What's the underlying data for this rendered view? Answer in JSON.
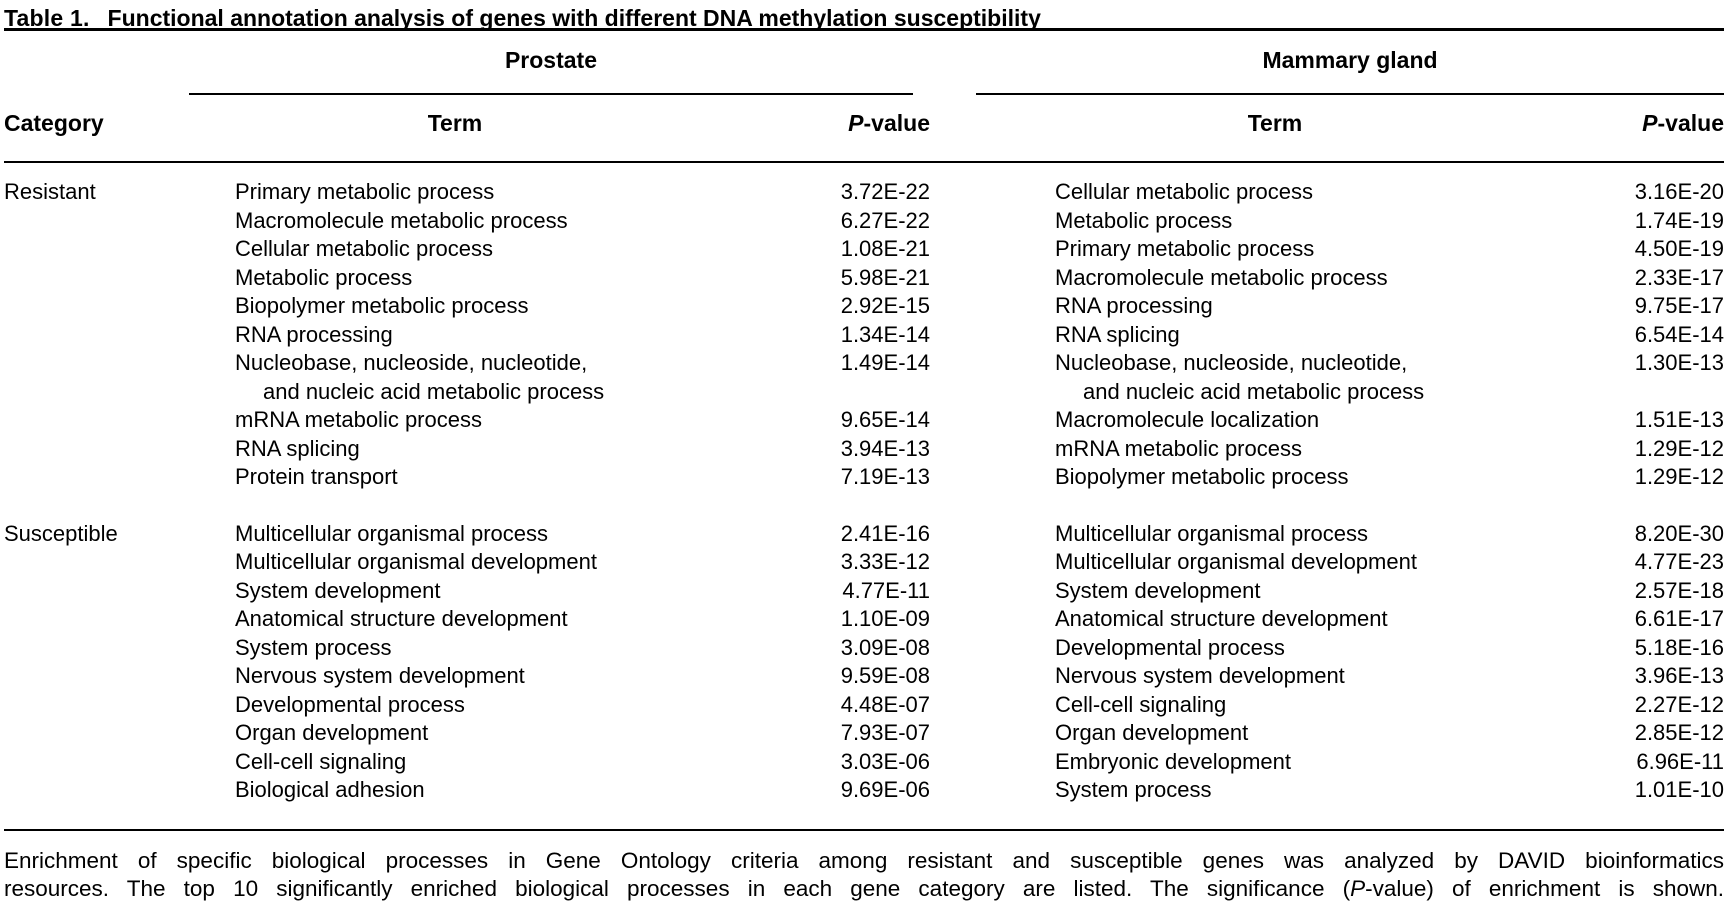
{
  "title": {
    "label": "Table 1.",
    "text": "Functional annotation analysis of genes with different DNA methylation susceptibility"
  },
  "header": {
    "category": "Category",
    "groups": [
      {
        "name": "Prostate",
        "term": "Term",
        "p_italic": "P",
        "p_suffix": "-value"
      },
      {
        "name": "Mammary gland",
        "term": "Term",
        "p_italic": "P",
        "p_suffix": "-value"
      }
    ]
  },
  "sections": [
    {
      "category": "Resistant",
      "rows": [
        {
          "pt": "Primary metabolic process",
          "pp": "3.72E-22",
          "mt": "Cellular metabolic process",
          "mp": "3.16E-20"
        },
        {
          "pt": "Macromolecule metabolic process",
          "pp": "6.27E-22",
          "mt": "Metabolic process",
          "mp": "1.74E-19"
        },
        {
          "pt": "Cellular metabolic process",
          "pp": "1.08E-21",
          "mt": "Primary metabolic process",
          "mp": "4.50E-19"
        },
        {
          "pt": "Metabolic process",
          "pp": "5.98E-21",
          "mt": "Macromolecule metabolic process",
          "mp": "2.33E-17"
        },
        {
          "pt": "Biopolymer metabolic process",
          "pp": "2.92E-15",
          "mt": "RNA processing",
          "mp": "9.75E-17"
        },
        {
          "pt": "RNA processing",
          "pp": "1.34E-14",
          "mt": "RNA splicing",
          "mp": "6.54E-14"
        },
        {
          "pt": "Nucleobase, nucleoside, nucleotide,",
          "pt2": "and nucleic acid metabolic process",
          "pp": "1.49E-14",
          "mt": "Nucleobase, nucleoside, nucleotide,",
          "mt2": "and nucleic acid metabolic process",
          "mp": "1.30E-13"
        },
        {
          "pt": "mRNA metabolic process",
          "pp": "9.65E-14",
          "mt": "Macromolecule localization",
          "mp": "1.51E-13"
        },
        {
          "pt": "RNA splicing",
          "pp": "3.94E-13",
          "mt": "mRNA metabolic process",
          "mp": "1.29E-12"
        },
        {
          "pt": "Protein transport",
          "pp": "7.19E-13",
          "mt": "Biopolymer metabolic process",
          "mp": "1.29E-12"
        }
      ]
    },
    {
      "category": "Susceptible",
      "rows": [
        {
          "pt": "Multicellular organismal process",
          "pp": "2.41E-16",
          "mt": "Multicellular organismal process",
          "mp": "8.20E-30"
        },
        {
          "pt": "Multicellular organismal development",
          "pp": "3.33E-12",
          "mt": "Multicellular organismal development",
          "mp": "4.77E-23"
        },
        {
          "pt": "System development",
          "pp": "4.77E-11",
          "mt": "System development",
          "mp": "2.57E-18"
        },
        {
          "pt": "Anatomical structure development",
          "pp": "1.10E-09",
          "mt": "Anatomical structure development",
          "mp": "6.61E-17"
        },
        {
          "pt": "System process",
          "pp": "3.09E-08",
          "mt": "Developmental process",
          "mp": "5.18E-16"
        },
        {
          "pt": "Nervous system development",
          "pp": "9.59E-08",
          "mt": "Nervous system development",
          "mp": "3.96E-13"
        },
        {
          "pt": "Developmental process",
          "pp": "4.48E-07",
          "mt": "Cell-cell signaling",
          "mp": "2.27E-12"
        },
        {
          "pt": "Organ development",
          "pp": "7.93E-07",
          "mt": "Organ development",
          "mp": "2.85E-12"
        },
        {
          "pt": "Cell-cell signaling",
          "pp": "3.03E-06",
          "mt": "Embryonic development",
          "mp": "6.96E-11"
        },
        {
          "pt": "Biological adhesion",
          "pp": "9.69E-06",
          "mt": "System process",
          "mp": "1.01E-10"
        }
      ]
    }
  ],
  "footer": {
    "line1": "Enrichment of specific biological processes in Gene Ontology criteria among resistant and susceptible genes was analyzed by DAVID bioinformatics",
    "line2_pre": "resources. The top 10 significantly enriched biological processes in each gene category are listed. The significance (",
    "line2_italic": "P",
    "line2_post": "-value) of enrichment is shown."
  }
}
